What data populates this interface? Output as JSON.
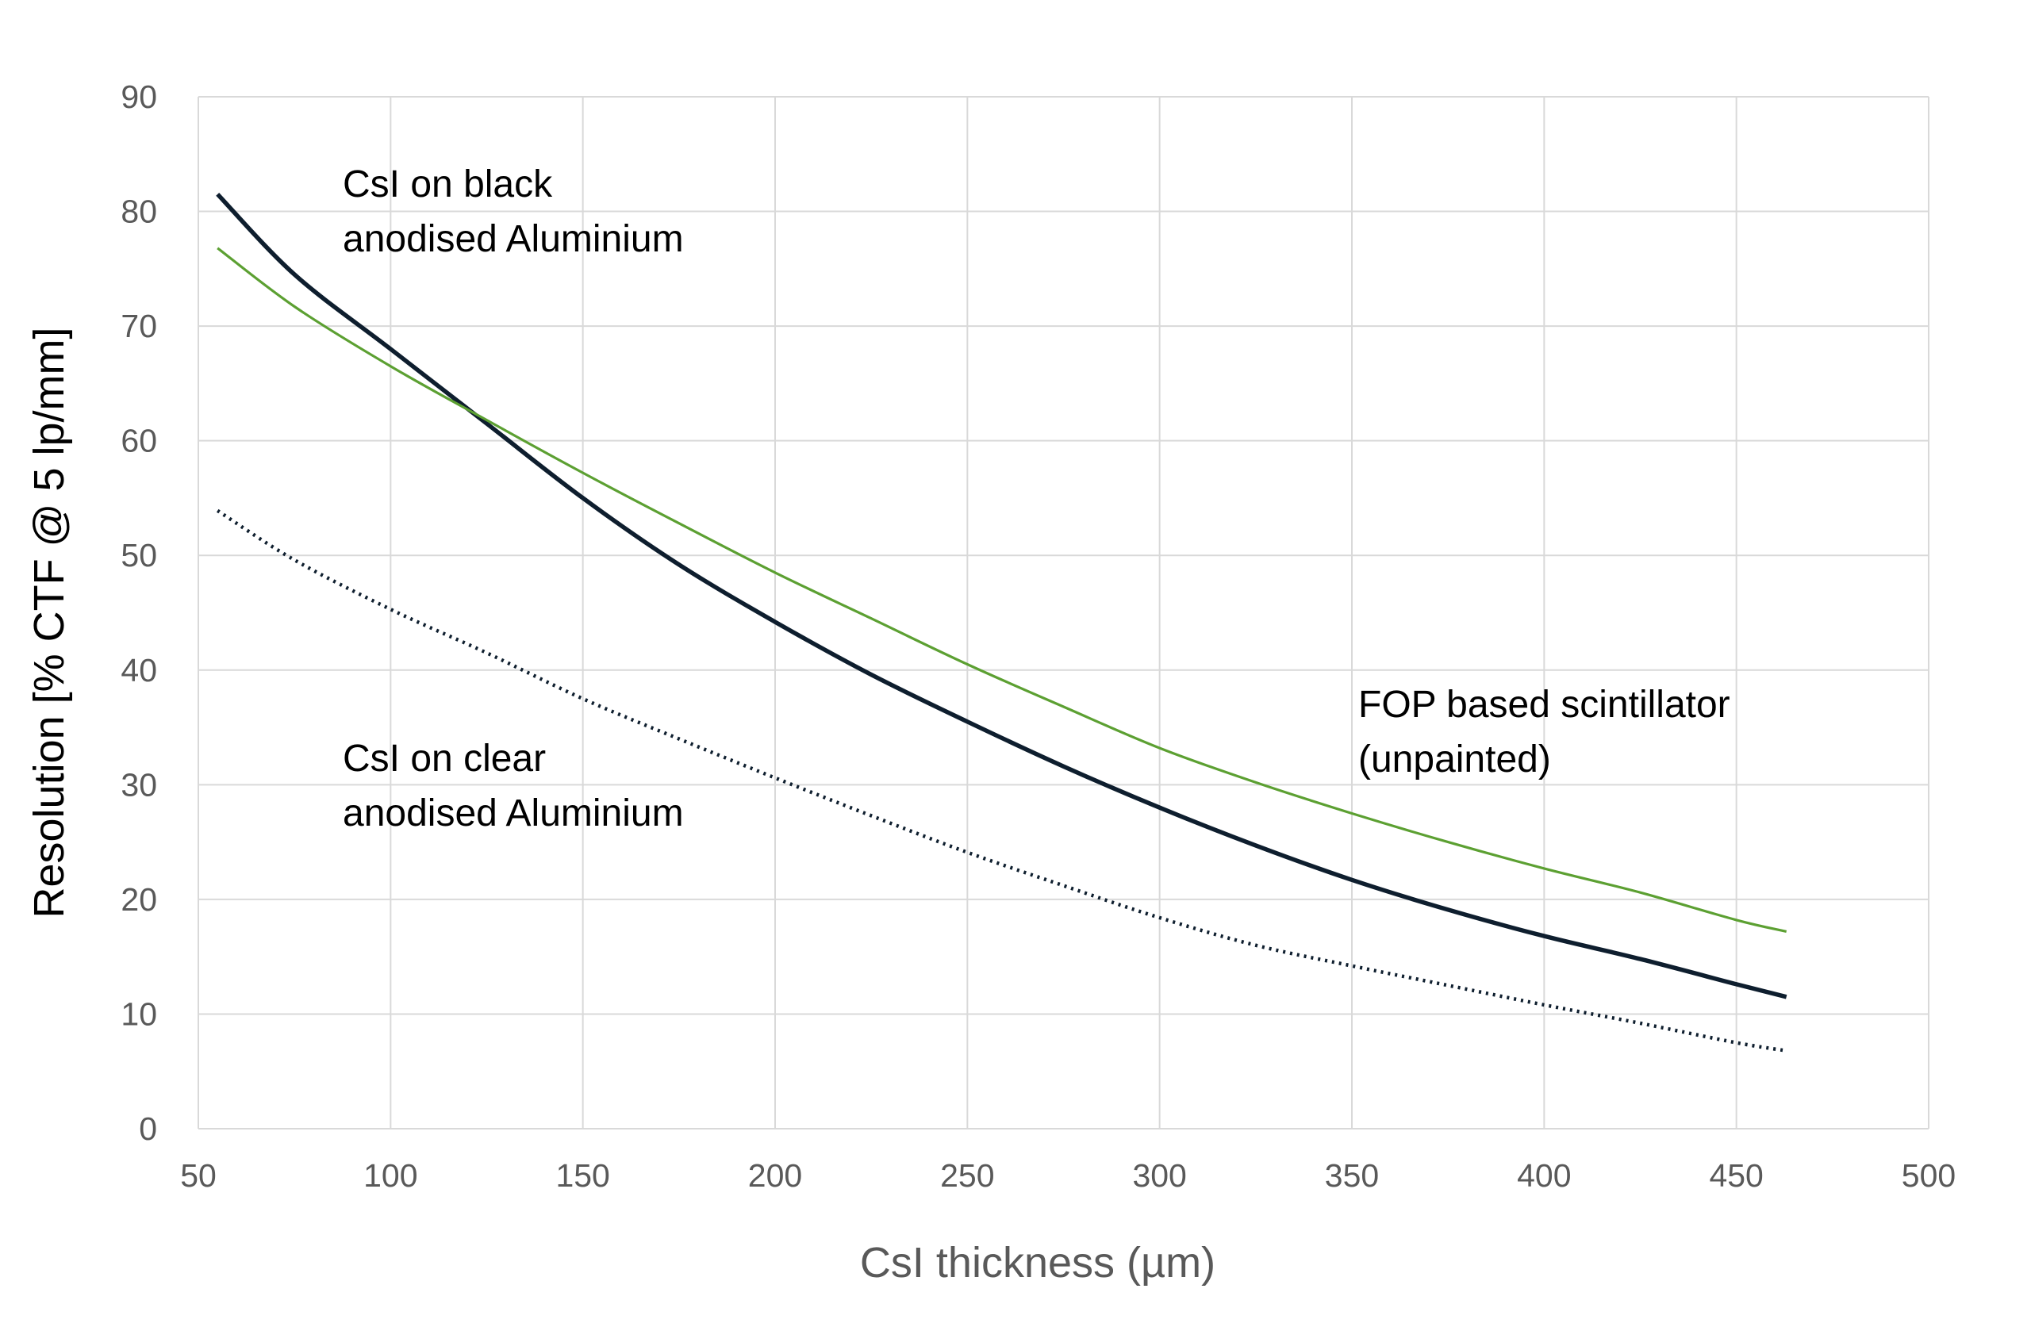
{
  "chart_data": {
    "type": "line",
    "xlabel": "CsI thickness (µm)",
    "ylabel": "Resolution [% CTF @ 5 lp/mm]",
    "xlim": [
      50,
      500
    ],
    "ylim": [
      0,
      90
    ],
    "x_ticks": [
      "50",
      "100",
      "150",
      "200",
      "250",
      "300",
      "350",
      "400",
      "450",
      "500"
    ],
    "y_ticks": [
      "0",
      "10",
      "20",
      "30",
      "40",
      "50",
      "60",
      "70",
      "80",
      "90"
    ],
    "grid": true,
    "legend": "none",
    "series": [
      {
        "label_lines": [
          "CsI on black",
          "anodised Aluminium"
        ],
        "color": "#0e1e2e",
        "style": "solid-thick",
        "x": [
          55,
          75,
          100,
          125,
          150,
          175,
          200,
          225,
          250,
          275,
          300,
          325,
          350,
          375,
          400,
          425,
          450,
          463
        ],
        "y": [
          81.5,
          74.5,
          68,
          61.5,
          55,
          49.2,
          44.2,
          39.6,
          35.5,
          31.6,
          28,
          24.7,
          21.7,
          19.1,
          16.8,
          14.8,
          12.6,
          11.5
        ]
      },
      {
        "label_lines": [
          "FOP based scintillator",
          "(unpainted)"
        ],
        "color": "#5ca032",
        "style": "solid-thin",
        "x": [
          55,
          75,
          100,
          125,
          150,
          175,
          200,
          225,
          250,
          275,
          300,
          325,
          350,
          375,
          400,
          425,
          450,
          463
        ],
        "y": [
          76.8,
          71.7,
          66.5,
          61.8,
          57.2,
          52.8,
          48.5,
          44.5,
          40.5,
          36.8,
          33.2,
          30.2,
          27.5,
          25,
          22.7,
          20.6,
          18.2,
          17.2
        ]
      },
      {
        "label_lines": [
          "CsI on clear",
          "anodised Aluminium"
        ],
        "color": "#0e1e2e",
        "style": "dotted",
        "x": [
          55,
          75,
          100,
          125,
          150,
          175,
          200,
          225,
          250,
          275,
          300,
          325,
          350,
          375,
          400,
          425,
          450,
          463
        ],
        "y": [
          53.9,
          49.6,
          45.3,
          41.5,
          37.5,
          34,
          30.6,
          27.3,
          24.1,
          21.2,
          18.4,
          16,
          14.2,
          12.5,
          10.8,
          9.2,
          7.5,
          6.8
        ]
      }
    ]
  }
}
